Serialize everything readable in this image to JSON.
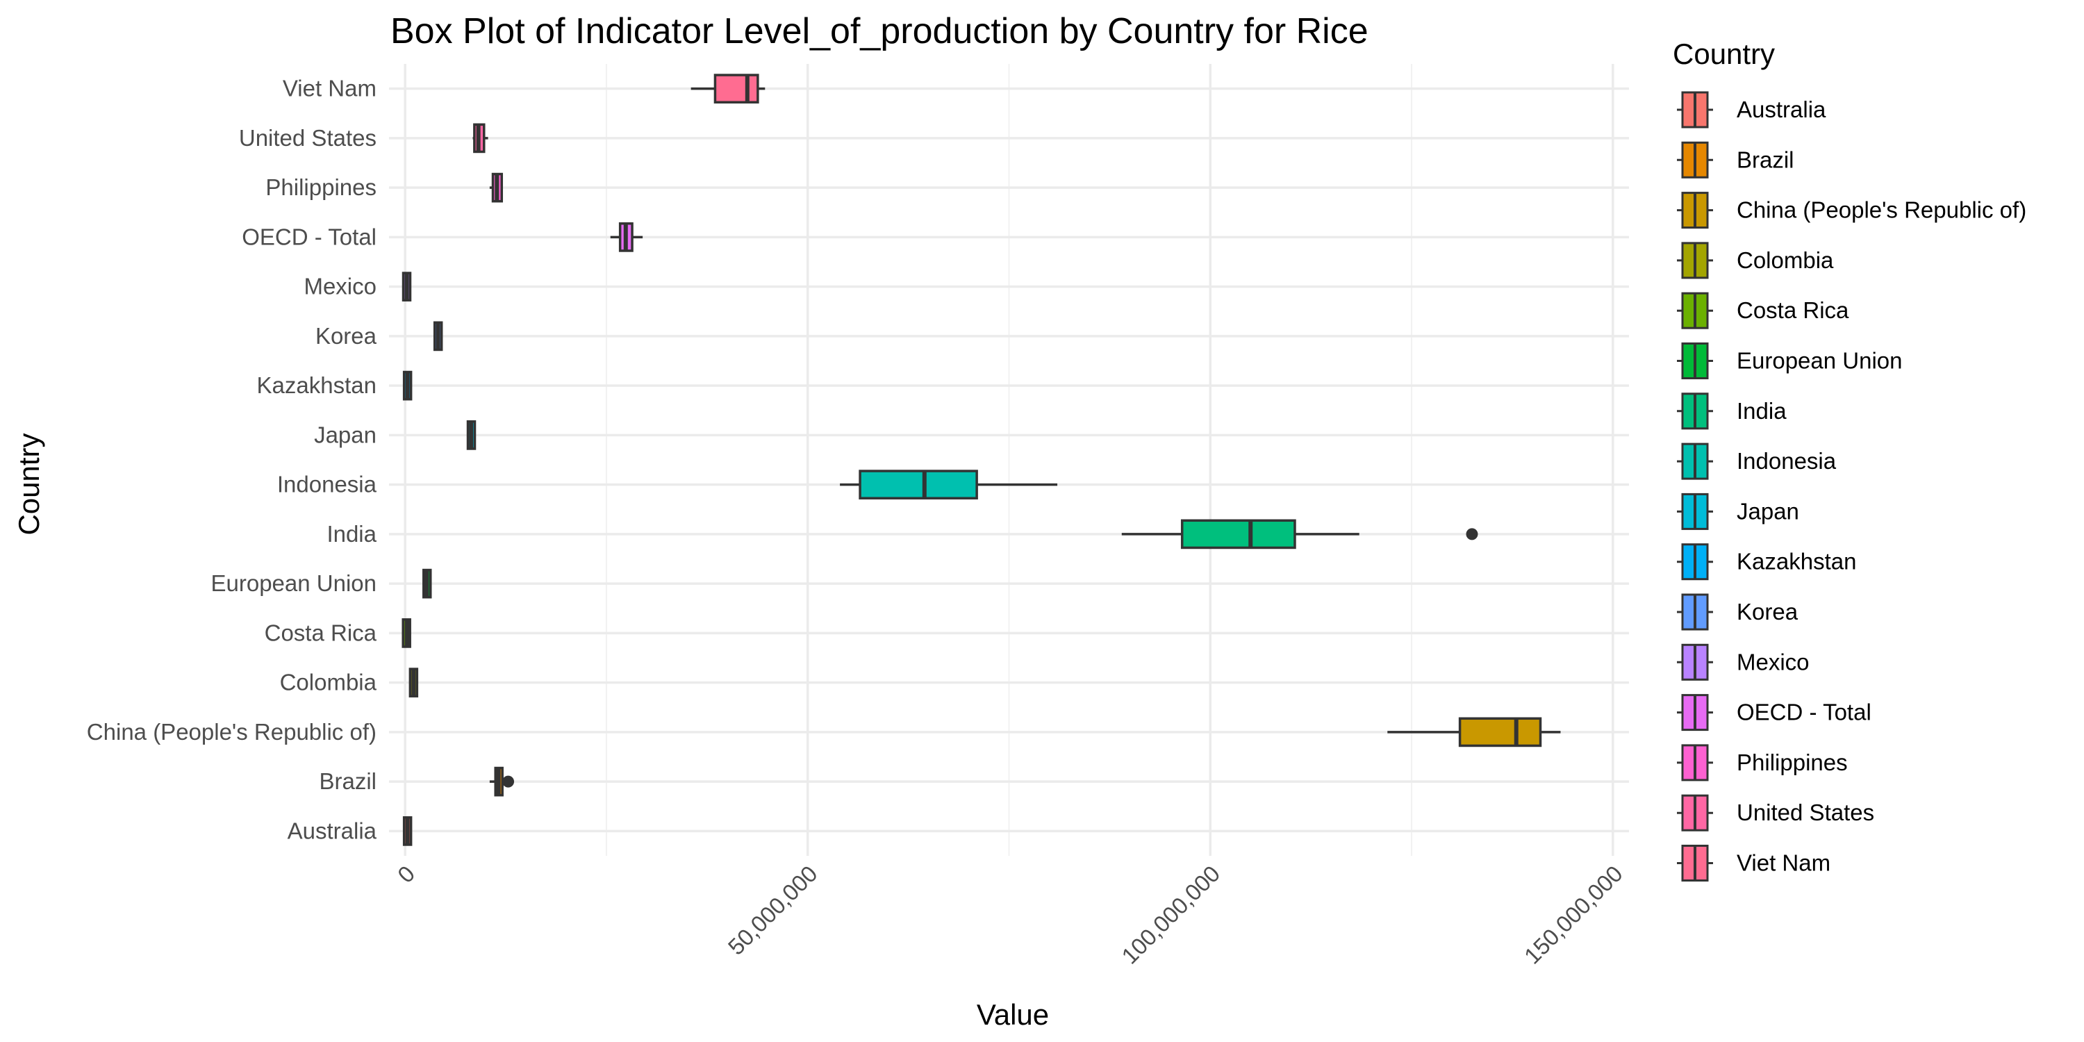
{
  "chart_data": {
    "type": "boxplot",
    "title": "Box Plot of Indicator Level_of_production by Country for Rice",
    "xlabel": "Value",
    "ylabel": "Country",
    "xlim": [
      -2000000,
      152000000
    ],
    "x_ticks": [
      0,
      50000000,
      100000000,
      150000000
    ],
    "x_tick_labels": [
      "0",
      "50,000,000",
      "100,000,000",
      "150,000,000"
    ],
    "grid": true,
    "legend": {
      "title": "Country",
      "position": "right"
    },
    "series": [
      {
        "name": "Australia",
        "color": "#F8766D",
        "min": 0,
        "q1": 0,
        "median": 300000,
        "q3": 600000,
        "max": 800000,
        "outliers": []
      },
      {
        "name": "Brazil",
        "color": "#E58700",
        "min": 10500000,
        "q1": 11300000,
        "median": 11600000,
        "q3": 12000000,
        "max": 12000000,
        "outliers": [
          12800000
        ]
      },
      {
        "name": "China (People's Republic of)",
        "color": "#C99800",
        "min": 122000000,
        "q1": 131000000,
        "median": 138000000,
        "q3": 141000000,
        "max": 143500000,
        "outliers": []
      },
      {
        "name": "Colombia",
        "color": "#A3A500",
        "min": 850000,
        "q1": 900000,
        "median": 1050000,
        "q3": 1200000,
        "max": 1300000,
        "outliers": []
      },
      {
        "name": "Costa Rica",
        "color": "#6BB100",
        "min": 0,
        "q1": 100000,
        "median": 200000,
        "q3": 250000,
        "max": 300000,
        "outliers": []
      },
      {
        "name": "European Union",
        "color": "#00BA38",
        "min": 2400000,
        "q1": 2600000,
        "median": 2700000,
        "q3": 2850000,
        "max": 3000000,
        "outliers": []
      },
      {
        "name": "India",
        "color": "#00BF7D",
        "min": 89000000,
        "q1": 96500000,
        "median": 105000000,
        "q3": 110500000,
        "max": 118500000,
        "outliers": [
          132500000
        ]
      },
      {
        "name": "Indonesia",
        "color": "#00C0AF",
        "min": 54000000,
        "q1": 56500000,
        "median": 64500000,
        "q3": 71000000,
        "max": 81000000,
        "outliers": []
      },
      {
        "name": "Japan",
        "color": "#00BCD8",
        "min": 8000000,
        "q1": 8100000,
        "median": 8200000,
        "q3": 8350000,
        "max": 8500000,
        "outliers": []
      },
      {
        "name": "Kazakhstan",
        "color": "#00B0F6",
        "min": 200000,
        "q1": 250000,
        "median": 300000,
        "q3": 350000,
        "max": 400000,
        "outliers": []
      },
      {
        "name": "Korea",
        "color": "#619CFF",
        "min": 3900000,
        "q1": 4000000,
        "median": 4100000,
        "q3": 4200000,
        "max": 4300000,
        "outliers": []
      },
      {
        "name": "Mexico",
        "color": "#B983FF",
        "min": 100000,
        "q1": 150000,
        "median": 200000,
        "q3": 250000,
        "max": 300000,
        "outliers": []
      },
      {
        "name": "OECD - Total",
        "color": "#E76BF3",
        "min": 25500000,
        "q1": 26700000,
        "median": 27400000,
        "q3": 28200000,
        "max": 29500000,
        "outliers": []
      },
      {
        "name": "Philippines",
        "color": "#FD61D1",
        "min": 10500000,
        "q1": 10900000,
        "median": 11400000,
        "q3": 12000000,
        "max": 12100000,
        "outliers": []
      },
      {
        "name": "United States",
        "color": "#FF67A4",
        "min": 8400000,
        "q1": 8600000,
        "median": 9100000,
        "q3": 9800000,
        "max": 10300000,
        "outliers": []
      },
      {
        "name": "Viet Nam",
        "color": "#FF6C91",
        "min": 35500000,
        "q1": 38500000,
        "median": 42500000,
        "q3": 43800000,
        "max": 44700000,
        "outliers": []
      }
    ]
  }
}
